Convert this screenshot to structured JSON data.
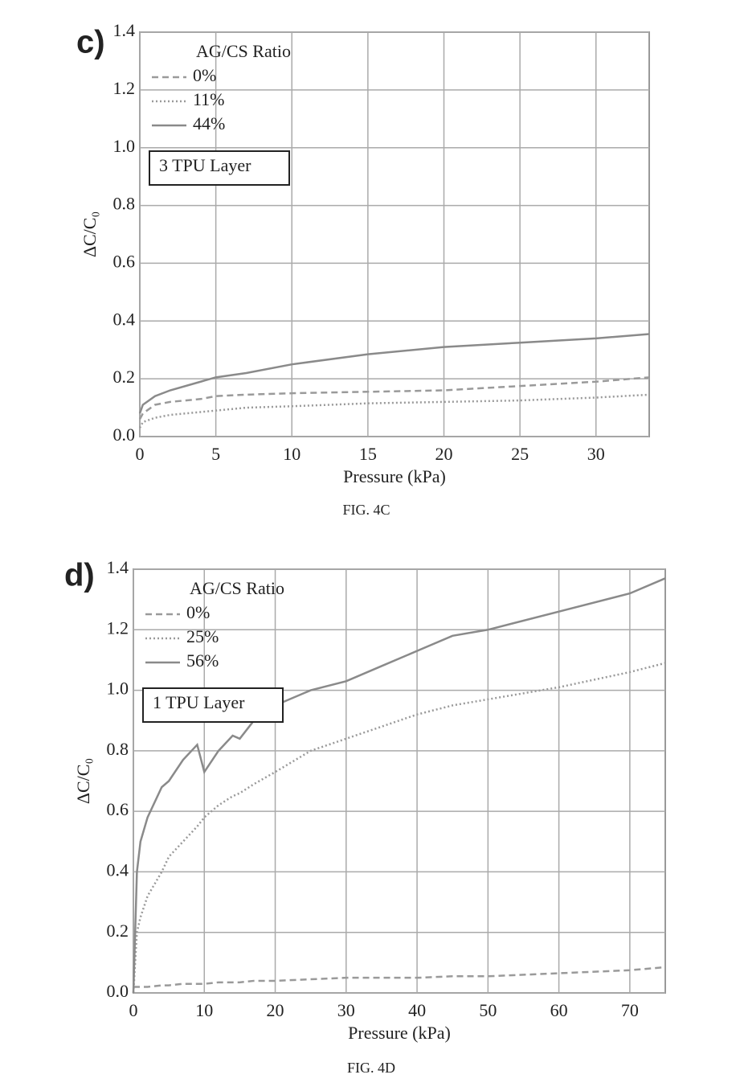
{
  "chart_data": [
    {
      "type": "line",
      "panel_label": "c)",
      "caption": "FIG. 4C",
      "annotation": "3 TPU Layer",
      "legend_title": "AG/CS Ratio",
      "legend": "upper left",
      "x_label": "Pressure (kPa)",
      "y_label": "ΔC/C₀",
      "grid": true,
      "xlim": [
        0,
        33.5
      ],
      "ylim": [
        0,
        1.4
      ],
      "xticks": [
        0,
        5,
        10,
        15,
        20,
        25,
        30
      ],
      "yticks": [
        {
          "value": 0,
          "label": "0.0"
        },
        0.2,
        0.4,
        0.6,
        0.8,
        {
          "value": 1,
          "label": "1.0"
        },
        1.2,
        1.4
      ],
      "x": [
        0,
        0.2,
        1,
        2,
        4,
        5,
        7,
        10,
        15,
        20,
        25,
        30,
        33.5
      ],
      "series": [
        {
          "name": "0%",
          "color": "#9a9a9a",
          "dash": "dashed",
          "values": [
            0.06,
            0.08,
            0.11,
            0.12,
            0.13,
            0.14,
            0.145,
            0.15,
            0.155,
            0.16,
            0.175,
            0.19,
            0.205
          ]
        },
        {
          "name": "11%",
          "color": "#9a9a9a",
          "dash": "dotted",
          "values": [
            0.03,
            0.05,
            0.065,
            0.075,
            0.085,
            0.09,
            0.1,
            0.105,
            0.115,
            0.12,
            0.125,
            0.135,
            0.145
          ]
        },
        {
          "name": "44%",
          "color": "#8a8a8a",
          "dash": "solid",
          "values": [
            0.08,
            0.11,
            0.14,
            0.16,
            0.19,
            0.205,
            0.22,
            0.25,
            0.285,
            0.31,
            0.325,
            0.34,
            0.355
          ]
        }
      ]
    },
    {
      "type": "line",
      "panel_label": "d)",
      "caption": "FIG. 4D",
      "annotation": "1 TPU Layer",
      "legend_title": "AG/CS Ratio",
      "legend": "upper left",
      "x_label": "Pressure (kPa)",
      "y_label": "ΔC/C₀",
      "grid": true,
      "xlim": [
        0,
        75
      ],
      "ylim": [
        0,
        1.4
      ],
      "xticks": [
        0,
        10,
        20,
        30,
        40,
        50,
        60,
        70
      ],
      "yticks": [
        {
          "value": 0,
          "label": "0.0"
        },
        0.2,
        0.4,
        0.6,
        0.8,
        {
          "value": 1,
          "label": "1.0"
        },
        1.2,
        1.4
      ],
      "x": [
        0,
        0.5,
        1,
        2,
        4,
        5,
        7,
        9,
        10,
        12,
        14,
        15,
        17,
        20,
        25,
        30,
        35,
        40,
        45,
        50,
        60,
        70,
        75
      ],
      "series": [
        {
          "name": "0%",
          "color": "#9a9a9a",
          "dash": "dashed",
          "values": [
            0.02,
            0.02,
            0.02,
            0.02,
            0.025,
            0.025,
            0.03,
            0.03,
            0.03,
            0.035,
            0.035,
            0.035,
            0.04,
            0.04,
            0.045,
            0.05,
            0.05,
            0.05,
            0.055,
            0.055,
            0.065,
            0.075,
            0.085
          ]
        },
        {
          "name": "25%",
          "color": "#9a9a9a",
          "dash": "dotted",
          "values": [
            0,
            0.2,
            0.25,
            0.32,
            0.4,
            0.45,
            0.5,
            0.55,
            0.58,
            0.62,
            0.65,
            0.66,
            0.69,
            0.73,
            0.8,
            0.84,
            0.88,
            0.92,
            0.95,
            0.97,
            1.01,
            1.06,
            1.09
          ]
        },
        {
          "name": "56%",
          "color": "#8a8a8a",
          "dash": "solid",
          "values": [
            0,
            0.4,
            0.5,
            0.58,
            0.68,
            0.7,
            0.77,
            0.82,
            0.73,
            0.8,
            0.85,
            0.84,
            0.9,
            0.95,
            1.0,
            1.03,
            1.08,
            1.13,
            1.18,
            1.2,
            1.26,
            1.32,
            1.37
          ]
        }
      ]
    }
  ]
}
